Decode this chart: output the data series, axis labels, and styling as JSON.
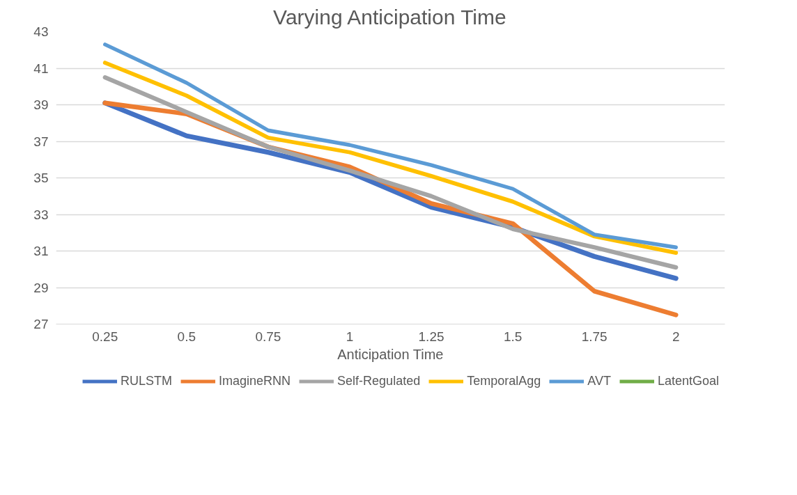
{
  "chart_data": {
    "type": "line",
    "title": "Varying Anticipation Time",
    "xlabel": "Anticipation Time",
    "categories": [
      "0.25",
      "0.5",
      "0.75",
      "1",
      "1.25",
      "1.5",
      "1.75",
      "2"
    ],
    "series": [
      {
        "name": "RULSTM",
        "color": "#4472c4",
        "values": [
          39.1,
          37.3,
          36.4,
          35.3,
          33.4,
          32.3,
          30.7,
          29.5
        ]
      },
      {
        "name": "ImagineRNN",
        "color": "#ed7d31",
        "values": [
          39.1,
          38.5,
          36.7,
          35.6,
          33.6,
          32.5,
          28.8,
          27.5
        ]
      },
      {
        "name": "Self-Regulated",
        "color": "#a5a5a5",
        "values": [
          40.5,
          38.6,
          36.7,
          35.4,
          34.0,
          32.2,
          31.2,
          30.1
        ]
      },
      {
        "name": "TemporalAgg",
        "color": "#ffc000",
        "values": [
          41.3,
          39.5,
          37.2,
          36.4,
          35.1,
          33.7,
          31.8,
          30.9
        ]
      },
      {
        "name": "AVT",
        "color": "#5b9bd5",
        "values": [
          42.3,
          40.2,
          37.6,
          36.8,
          35.7,
          34.4,
          31.9,
          31.2
        ]
      },
      {
        "name": "LatentGoal",
        "color": "#70ad47",
        "values": [
          null,
          null,
          null,
          null,
          null,
          null,
          null,
          null
        ]
      }
    ],
    "ylim": [
      27,
      43
    ],
    "yticks": [
      27,
      29,
      31,
      33,
      35,
      37,
      39,
      41,
      43
    ],
    "grid": "y",
    "legend": "bottom",
    "marker": "none",
    "line_style": "solid"
  }
}
